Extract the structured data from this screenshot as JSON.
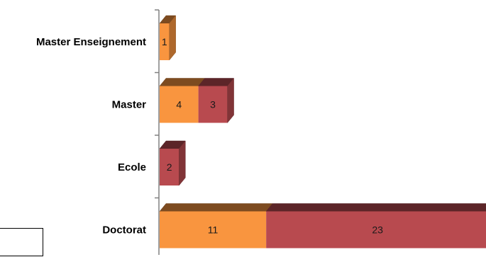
{
  "chart_data": {
    "type": "bar",
    "orientation": "horizontal",
    "stacked": true,
    "style": "3d",
    "categories": [
      "Master Enseignement",
      "Master",
      "Ecole",
      "Doctorat"
    ],
    "series": [
      {
        "values": [
          1,
          4,
          0,
          11
        ],
        "color": "#f9953f"
      },
      {
        "values": [
          0,
          3,
          2,
          23
        ],
        "color": "#b84a4f"
      }
    ],
    "xlim": [
      0,
      34
    ],
    "grid": false,
    "legend": "none"
  }
}
